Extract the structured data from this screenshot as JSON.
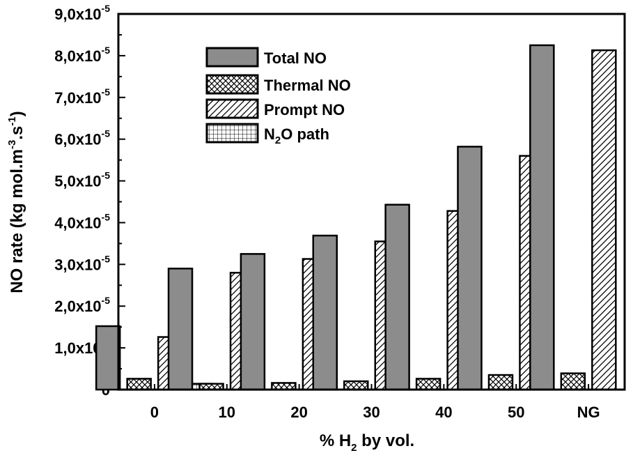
{
  "chart_data": {
    "type": "bar",
    "title": "",
    "xlabel": {
      "prefix": "% H",
      "sub": "2",
      "suffix": " by vol."
    },
    "ylabel": {
      "part1": "NO rate (kg mol.m",
      "sup1": "-3",
      "part2": ".s",
      "sup2": "-1",
      "part3": ")"
    },
    "categories": [
      "0",
      "10",
      "20",
      "30",
      "40",
      "50",
      "NG"
    ],
    "ylim": [
      0,
      9e-05
    ],
    "yticks": [
      {
        "value": 0,
        "label": "0"
      },
      {
        "value": 1e-05,
        "label": "1,0x10",
        "exp": "-5"
      },
      {
        "value": 2e-05,
        "label": "2,0x10",
        "exp": "-5"
      },
      {
        "value": 3e-05,
        "label": "3,0x10",
        "exp": "-5"
      },
      {
        "value": 4e-05,
        "label": "4,0x10",
        "exp": "-5"
      },
      {
        "value": 5e-05,
        "label": "5,0x10",
        "exp": "-5"
      },
      {
        "value": 6e-05,
        "label": "6,0x10",
        "exp": "-5"
      },
      {
        "value": 7e-05,
        "label": "7,0x10",
        "exp": "-5"
      },
      {
        "value": 8e-05,
        "label": "8,0x10",
        "exp": "-5"
      },
      {
        "value": 9e-05,
        "label": "9,0x10",
        "exp": "-5"
      }
    ],
    "series": [
      {
        "name": "Total NO",
        "legend": {
          "text": "Total NO"
        },
        "pattern": "solid",
        "values": [
          1.52e-05,
          2.9e-05,
          3.25e-05,
          3.69e-05,
          4.43e-05,
          5.82e-05,
          8.25e-05
        ]
      },
      {
        "name": "Thermal NO",
        "legend": {
          "text": "Thermal NO"
        },
        "pattern": "crosshatch",
        "values": [
          2.6e-06,
          1.4e-06,
          1.6e-06,
          2e-06,
          2.6e-06,
          3.5e-06,
          3.9e-06
        ]
      },
      {
        "name": "Prompt NO",
        "legend": {
          "text": "Prompt NO"
        },
        "pattern": "diagonal",
        "values": [
          1.26e-05,
          2.8e-05,
          3.13e-05,
          3.55e-05,
          4.28e-05,
          5.6e-05,
          8.13e-05
        ]
      },
      {
        "name": "N2O path",
        "legend": {
          "text": "N",
          "sub": "2",
          "suffix": "O path"
        },
        "pattern": "grid",
        "values": [
          1.4e-06,
          null,
          null,
          null,
          null,
          null,
          null
        ]
      }
    ],
    "legend_position": "top-left",
    "grid": false,
    "colors": {
      "solid_fill": "#8c8c8c",
      "stroke": "#000000"
    }
  }
}
